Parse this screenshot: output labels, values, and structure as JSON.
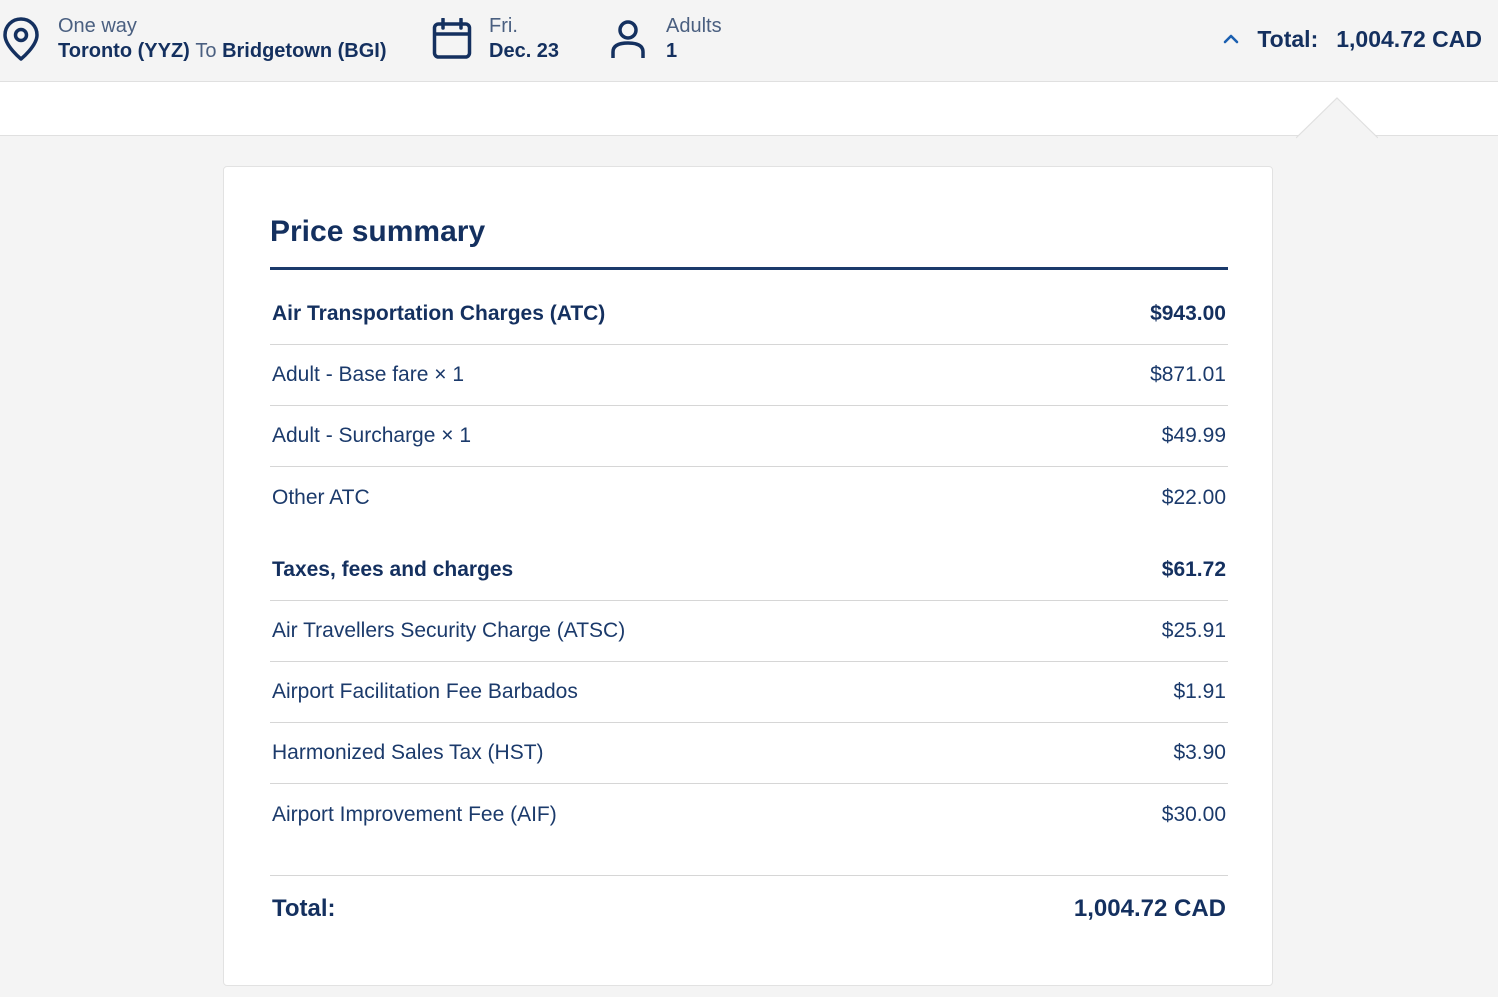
{
  "header": {
    "trip_type": "One way",
    "origin": "Toronto (YYZ)",
    "to_word": "To",
    "destination": "Bridgetown (BGI)",
    "day": "Fri.",
    "date": "Dec. 23",
    "passengers_label": "Adults",
    "passengers_count": "1",
    "total_label": "Total:",
    "total_amount": "1,004.72 CAD"
  },
  "summary": {
    "title": "Price summary",
    "sections": [
      {
        "heading": "Air Transportation Charges (ATC)",
        "amount": "$943.00",
        "items": [
          {
            "label": "Adult - Base fare × 1",
            "amount": "$871.01"
          },
          {
            "label": "Adult - Surcharge × 1",
            "amount": "$49.99"
          },
          {
            "label": "Other ATC",
            "amount": "$22.00"
          }
        ]
      },
      {
        "heading": "Taxes, fees and charges",
        "amount": "$61.72",
        "items": [
          {
            "label": "Air Travellers Security Charge (ATSC)",
            "amount": "$25.91"
          },
          {
            "label": "Airport Facilitation Fee Barbados",
            "amount": "$1.91"
          },
          {
            "label": "Harmonized Sales Tax (HST)",
            "amount": "$3.90"
          },
          {
            "label": "Airport Improvement Fee (AIF)",
            "amount": "$30.00"
          }
        ]
      }
    ],
    "total_label": "Total:",
    "total_amount": "1,004.72 CAD"
  },
  "colors": {
    "primary": "#14305f",
    "text": "#1b3a6b",
    "muted": "#4a5f80",
    "page_bg": "#f4f4f4",
    "divider": "#d6d6d6"
  },
  "icons": {
    "location": "map-pin-icon",
    "date": "calendar-icon",
    "passengers": "person-icon",
    "toggle": "chevron-up-icon"
  }
}
